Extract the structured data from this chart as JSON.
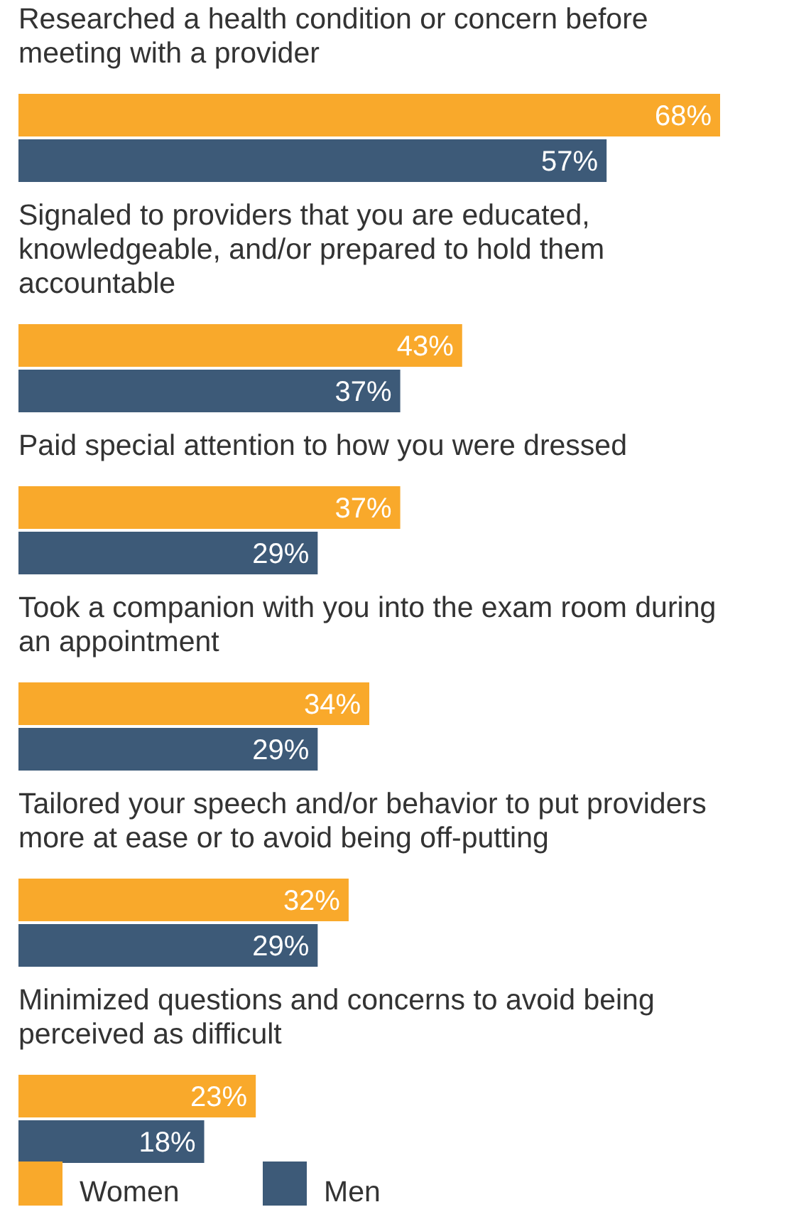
{
  "chart_data": {
    "type": "bar",
    "orientation": "horizontal",
    "categories": [
      "Researched a health condition or concern before meeting with a provider",
      "Signaled to providers that you are educated, knowledgeable, and/or prepared to hold them accountable",
      "Paid special attention to how you were dressed",
      "Took a companion with you into the exam room during an appointment",
      "Tailored your speech and/or behavior to put providers more at ease or to avoid being off-putting",
      "Minimized questions and concerns to avoid being perceived as difficult"
    ],
    "series": [
      {
        "name": "Women",
        "color": "#f9a92b",
        "values": [
          68,
          43,
          37,
          34,
          32,
          23
        ],
        "value_labels": [
          "68%",
          "43%",
          "37%",
          "34%",
          "32%",
          "23%"
        ]
      },
      {
        "name": "Men",
        "color": "#3d5a78",
        "values": [
          57,
          37,
          29,
          29,
          29,
          18
        ],
        "value_labels": [
          "57%",
          "37%",
          "29%",
          "29%",
          "29%",
          "18%"
        ]
      }
    ],
    "legend": "bottom"
  }
}
